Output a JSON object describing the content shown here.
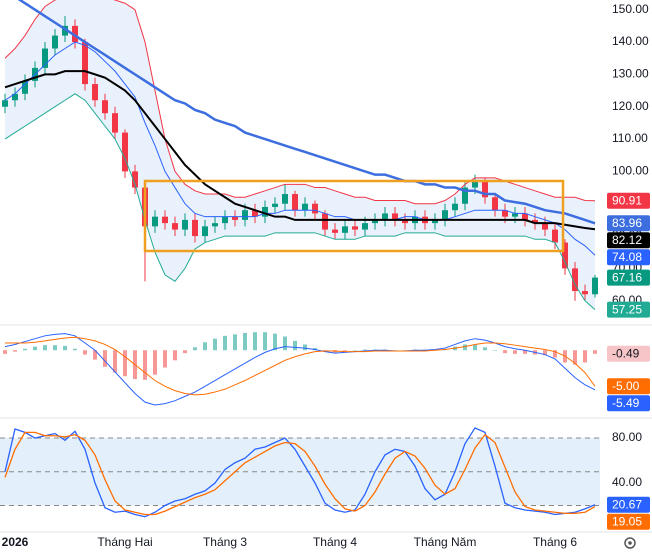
{
  "chart_data": [
    {
      "type": "candlestick",
      "x": [
        0,
        1,
        2,
        3,
        4,
        5,
        6,
        7,
        8,
        9,
        10,
        11,
        12,
        13,
        14,
        15,
        16,
        17,
        18,
        19,
        20,
        21,
        22,
        23,
        24,
        25,
        26,
        27,
        28,
        29,
        30,
        31,
        32,
        33,
        34,
        35,
        36,
        37,
        38,
        39,
        40,
        41,
        42,
        43,
        44,
        45,
        46,
        47,
        48,
        49,
        50,
        51,
        52,
        53,
        54,
        55,
        56,
        57,
        58,
        59
      ],
      "xlim": [
        -0.5,
        59.5
      ],
      "open": [
        120,
        122,
        124,
        128,
        132,
        138,
        142,
        145,
        140,
        127,
        122,
        118,
        112,
        100,
        95,
        83,
        86,
        84,
        82,
        85,
        80,
        83,
        84,
        86,
        85,
        88,
        86,
        89,
        90,
        93,
        88,
        90,
        87,
        82,
        81,
        83,
        82,
        84,
        85,
        87,
        85,
        84,
        86,
        84,
        85,
        88,
        90,
        95,
        97,
        92,
        88,
        86,
        87,
        85,
        84,
        82,
        78,
        70,
        63,
        62
      ],
      "high": [
        124,
        126,
        130,
        134,
        140,
        144,
        148,
        147,
        141,
        129,
        124,
        120,
        113,
        102,
        96,
        88,
        88,
        86,
        87,
        87,
        85,
        86,
        88,
        88,
        90,
        90,
        91,
        92,
        96,
        94,
        92,
        91,
        88,
        84,
        85,
        85,
        86,
        87,
        89,
        89,
        87,
        88,
        88,
        87,
        90,
        92,
        97,
        99,
        98,
        93,
        90,
        89,
        89,
        87,
        86,
        84,
        79,
        72,
        65,
        68
      ],
      "low": [
        118,
        120,
        122,
        126,
        130,
        136,
        140,
        138,
        125,
        120,
        116,
        110,
        98,
        93,
        66,
        81,
        82,
        80,
        80,
        78,
        78,
        81,
        82,
        83,
        83,
        84,
        84,
        87,
        88,
        86,
        86,
        85,
        80,
        79,
        79,
        80,
        80,
        82,
        83,
        83,
        82,
        82,
        82,
        82,
        83,
        86,
        88,
        93,
        90,
        86,
        84,
        84,
        83,
        82,
        80,
        76,
        68,
        60,
        60,
        61
      ],
      "close": [
        122,
        124,
        128,
        132,
        138,
        142,
        145,
        140,
        127,
        122,
        118,
        112,
        100,
        95,
        83,
        86,
        84,
        82,
        85,
        80,
        83,
        84,
        86,
        85,
        88,
        86,
        89,
        90,
        93,
        88,
        90,
        87,
        82,
        81,
        83,
        82,
        84,
        85,
        87,
        85,
        84,
        86,
        84,
        85,
        88,
        90,
        95,
        97,
        92,
        88,
        86,
        87,
        85,
        84,
        82,
        78,
        70,
        63,
        62,
        67.16
      ],
      "up_color": "#089981",
      "down_color": "#f23645",
      "lines": [
        {
          "color": "#f23645",
          "width": 1,
          "fill": "#e8f1fc",
          "values": [
            135,
            138,
            142,
            147,
            151,
            153,
            154,
            155,
            155,
            155,
            154,
            153,
            152,
            150,
            140,
            125,
            110,
            100,
            96,
            94,
            93,
            93,
            93,
            92,
            92,
            93,
            94,
            95,
            96,
            96,
            96,
            95,
            95,
            94,
            93,
            92,
            92,
            91,
            91,
            91,
            91,
            90,
            90,
            90,
            91,
            93,
            96,
            98,
            98,
            98,
            97,
            96,
            95,
            94,
            93,
            92,
            92,
            92,
            91,
            90.91
          ]
        },
        {
          "color": "#22ab94",
          "width": 1,
          "values": [
            110,
            112,
            114,
            116,
            118,
            120,
            122,
            124,
            122,
            118,
            114,
            110,
            104,
            96,
            85,
            75,
            68,
            66,
            70,
            76,
            78,
            79,
            80,
            80,
            80,
            80,
            80,
            81,
            81,
            81,
            81,
            81,
            80,
            79,
            79,
            79,
            80,
            80,
            80,
            80,
            81,
            81,
            81,
            81,
            80,
            80,
            80,
            80,
            80,
            80,
            80,
            80,
            80,
            79,
            79,
            78,
            72,
            65,
            60,
            57.25
          ]
        },
        {
          "color": "#2962ff",
          "width": 1,
          "values": [
            122,
            124,
            127,
            130,
            133,
            136,
            138,
            140,
            139,
            137,
            134,
            131,
            127,
            123,
            115,
            108,
            100,
            95,
            90,
            87,
            86,
            86,
            86,
            86,
            86,
            86,
            87,
            87,
            88,
            88,
            88,
            88,
            87,
            86,
            86,
            85,
            85,
            85,
            85,
            85,
            86,
            86,
            85,
            85,
            85,
            86,
            87,
            88,
            88,
            88,
            88,
            87,
            87,
            86,
            85,
            84,
            82,
            79,
            77,
            74.08
          ]
        },
        {
          "color": "#000000",
          "width": 2,
          "values": [
            126,
            127,
            128,
            129,
            130,
            130,
            131,
            131,
            131,
            130,
            129,
            127,
            125,
            122,
            118,
            114,
            110,
            106,
            102,
            99,
            96,
            94,
            92,
            90,
            89,
            88,
            87,
            86,
            86,
            85,
            85,
            85,
            85,
            85,
            85,
            85,
            85,
            85,
            85,
            85,
            85,
            85,
            85,
            85,
            85,
            85,
            85,
            85,
            85,
            85,
            85,
            85,
            85,
            84,
            84,
            84,
            83.5,
            83,
            82.5,
            82.12
          ]
        },
        {
          "color": "#3d6ee0",
          "width": 2.5,
          "values": [
            156,
            154,
            152,
            150,
            148,
            146,
            144,
            142,
            140,
            138,
            136,
            134,
            132,
            130,
            128,
            126,
            124,
            122,
            121,
            119,
            118,
            116,
            115,
            114,
            112,
            111,
            110,
            109,
            108,
            107,
            106,
            105,
            104,
            103,
            102,
            101,
            100,
            99,
            99,
            98,
            97,
            97,
            96,
            96,
            95,
            95,
            94,
            94,
            93,
            93,
            91,
            90.5,
            90,
            89,
            88,
            87.5,
            87,
            86,
            85,
            83.96
          ]
        }
      ],
      "ylim": [
        52.5,
        153
      ],
      "yticks": [
        {
          "value": 60,
          "label": "60.00"
        },
        {
          "value": 70,
          "label": "70.00"
        },
        {
          "value": 80,
          "label": "80.00"
        },
        {
          "value": 90,
          "label": "90.00"
        },
        {
          "value": 100,
          "label": "100.00"
        },
        {
          "value": 110,
          "label": "110.00"
        },
        {
          "value": 120,
          "label": "120.00"
        },
        {
          "value": 130,
          "label": "130.00"
        },
        {
          "value": 140,
          "label": "140.00"
        },
        {
          "value": 150,
          "label": "150.00"
        }
      ]
    },
    {
      "type": "macd",
      "x": [
        0,
        1,
        2,
        3,
        4,
        5,
        6,
        7,
        8,
        9,
        10,
        11,
        12,
        13,
        14,
        15,
        16,
        17,
        18,
        19,
        20,
        21,
        22,
        23,
        24,
        25,
        26,
        27,
        28,
        29,
        30,
        31,
        32,
        33,
        34,
        35,
        36,
        37,
        38,
        39,
        40,
        41,
        42,
        43,
        44,
        45,
        46,
        47,
        48,
        49,
        50,
        51,
        52,
        53,
        54,
        55,
        56,
        57,
        58,
        59
      ],
      "xlim": [
        -0.5,
        59.5
      ],
      "ylim": [
        -9.4,
        3.5
      ],
      "histogram": {
        "up_color": "#26a69a",
        "down_color": "#ef5350",
        "values": [
          -0.5,
          -0.2,
          0.2,
          0.5,
          0.7,
          0.7,
          0.6,
          0.2,
          -0.6,
          -1.3,
          -2.3,
          -3.1,
          -3.6,
          -4,
          -4.1,
          -3.4,
          -2.4,
          -1.4,
          -0.4,
          0.4,
          1.1,
          1.6,
          2,
          2.2,
          2.4,
          2.5,
          2.5,
          2.3,
          1.9,
          1.3,
          0.8,
          0.3,
          -0.1,
          -0.3,
          -0.1,
          0,
          0.1,
          0.1,
          0.1,
          0,
          0,
          0.1,
          0.1,
          0.1,
          0.2,
          0.5,
          0.8,
          0.8,
          0.4,
          0,
          -0.4,
          -0.5,
          -0.5,
          -0.6,
          -0.7,
          -1,
          -1.7,
          -2,
          -1.7,
          -0.49
        ]
      },
      "lines": [
        {
          "color": "#2962ff",
          "width": 1,
          "values": [
            0.5,
            0.8,
            1.2,
            1.6,
            2,
            2.2,
            2.3,
            2,
            1,
            0,
            -1.5,
            -3,
            -4.5,
            -6,
            -7.2,
            -7.6,
            -7.4,
            -7,
            -6.4,
            -5.8,
            -5,
            -4.2,
            -3.4,
            -2.6,
            -1.8,
            -1,
            -0.3,
            0.2,
            0.5,
            0.4,
            0.3,
            0.1,
            -0.2,
            -0.4,
            -0.3,
            -0.2,
            -0.1,
            0,
            0,
            -0.1,
            -0.1,
            0,
            0,
            0.1,
            0.3,
            0.8,
            1.3,
            1.6,
            1.4,
            1,
            0.5,
            0.2,
            0,
            -0.3,
            -0.6,
            -1.2,
            -2.5,
            -3.8,
            -4.8,
            -5.49
          ]
        },
        {
          "color": "#ff6d00",
          "width": 1,
          "tag": {
            "value": -5,
            "label": "-5.00"
          },
          "values": [
            1,
            1,
            1,
            1.1,
            1.3,
            1.5,
            1.7,
            1.8,
            1.6,
            1.3,
            0.8,
            0.1,
            -0.9,
            -2,
            -3.1,
            -4.2,
            -5,
            -5.6,
            -6,
            -6.2,
            -6.1,
            -5.8,
            -5.4,
            -4.8,
            -4.2,
            -3.5,
            -2.8,
            -2.1,
            -1.4,
            -0.9,
            -0.5,
            -0.2,
            -0.1,
            -0.1,
            -0.2,
            -0.2,
            -0.2,
            -0.1,
            -0.1,
            -0.1,
            -0.1,
            -0.1,
            -0.1,
            0,
            0.1,
            0.3,
            0.5,
            0.8,
            1,
            1,
            0.9,
            0.7,
            0.5,
            0.3,
            0.1,
            -0.2,
            -0.8,
            -1.8,
            -3.1,
            -5
          ]
        }
      ]
    },
    {
      "type": "line",
      "x": [
        0,
        1,
        2,
        3,
        4,
        5,
        6,
        7,
        8,
        9,
        10,
        11,
        12,
        13,
        14,
        15,
        16,
        17,
        18,
        19,
        20,
        21,
        22,
        23,
        24,
        25,
        26,
        27,
        28,
        29,
        30,
        31,
        32,
        33,
        34,
        35,
        36,
        37,
        38,
        39,
        40,
        41,
        42,
        43,
        44,
        45,
        46,
        47,
        48,
        49,
        50,
        51,
        52,
        53,
        54,
        55,
        56,
        57,
        58,
        59
      ],
      "xlim": [
        -0.5,
        59.5
      ],
      "xticks": [
        {
          "value": 1,
          "label": "2026"
        },
        {
          "value": 12,
          "label": "Tháng Hai"
        },
        {
          "value": 22,
          "label": "Tháng 3"
        },
        {
          "value": 33,
          "label": "Tháng 4"
        },
        {
          "value": 44,
          "label": "Tháng Năm"
        },
        {
          "value": 55,
          "label": "Tháng 6"
        }
      ],
      "ylim": [
        -1.8,
        97.8
      ],
      "yticks": [
        {
          "value": 40,
          "label": "40.00"
        },
        {
          "value": 80,
          "label": "80.00"
        }
      ],
      "levels": [
        20,
        50,
        80
      ],
      "band_color": "#e3f0fc",
      "lines": [
        {
          "color": "#2962ff",
          "width": 1.3,
          "values": [
            50,
            88,
            85,
            80,
            82,
            84,
            78,
            86,
            70,
            40,
            18,
            14,
            15,
            12,
            10,
            14,
            20,
            24,
            26,
            30,
            33,
            40,
            52,
            58,
            62,
            70,
            72,
            76,
            80,
            70,
            55,
            40,
            22,
            16,
            14,
            16,
            30,
            50,
            65,
            70,
            68,
            55,
            35,
            25,
            30,
            50,
            75,
            89,
            85,
            55,
            22,
            18,
            16,
            15,
            14,
            12,
            13,
            14,
            17,
            20.67
          ]
        },
        {
          "color": "#ff6d00",
          "width": 1.3,
          "values": [
            45,
            70,
            85,
            85,
            82,
            82,
            81,
            83,
            78,
            65,
            43,
            24,
            16,
            14,
            12,
            12,
            15,
            19,
            23,
            27,
            30,
            34,
            42,
            50,
            58,
            63,
            68,
            73,
            76,
            75,
            68,
            55,
            39,
            26,
            17,
            15,
            20,
            32,
            48,
            62,
            68,
            64,
            53,
            38,
            30,
            35,
            52,
            71,
            83,
            76,
            54,
            32,
            19,
            16,
            15,
            14,
            13,
            13,
            14,
            19.05
          ]
        }
      ]
    }
  ]
}
